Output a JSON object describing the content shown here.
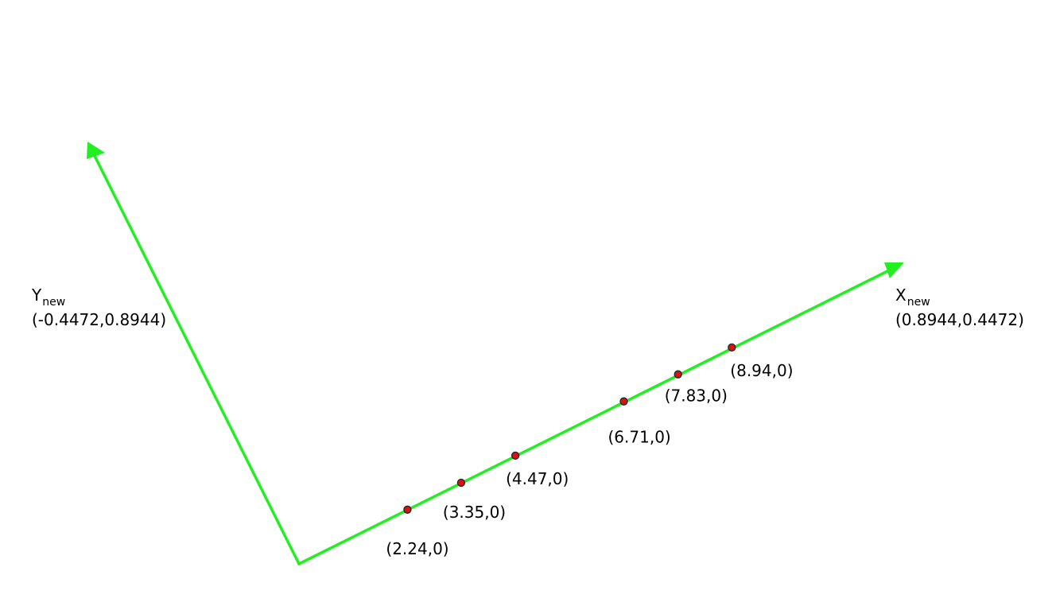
{
  "colors": {
    "axis": "#22ee22",
    "point_fill": "#dd1111",
    "point_stroke": "#222222",
    "text": "#000000"
  },
  "axes": {
    "x": {
      "name": "X",
      "subscript": "new",
      "vector": "(0.8944,0.4472)"
    },
    "y": {
      "name": "Y",
      "subscript": "new",
      "vector": "(-0.4472,0.8944)"
    }
  },
  "points": [
    {
      "t": 2.24,
      "label": "(2.24,0)"
    },
    {
      "t": 3.35,
      "label": "(3.35,0)"
    },
    {
      "t": 4.47,
      "label": "(4.47,0)"
    },
    {
      "t": 6.71,
      "label": "(6.71,0)"
    },
    {
      "t": 7.83,
      "label": "(7.83,0)"
    },
    {
      "t": 8.94,
      "label": "(8.94,0)"
    }
  ]
}
